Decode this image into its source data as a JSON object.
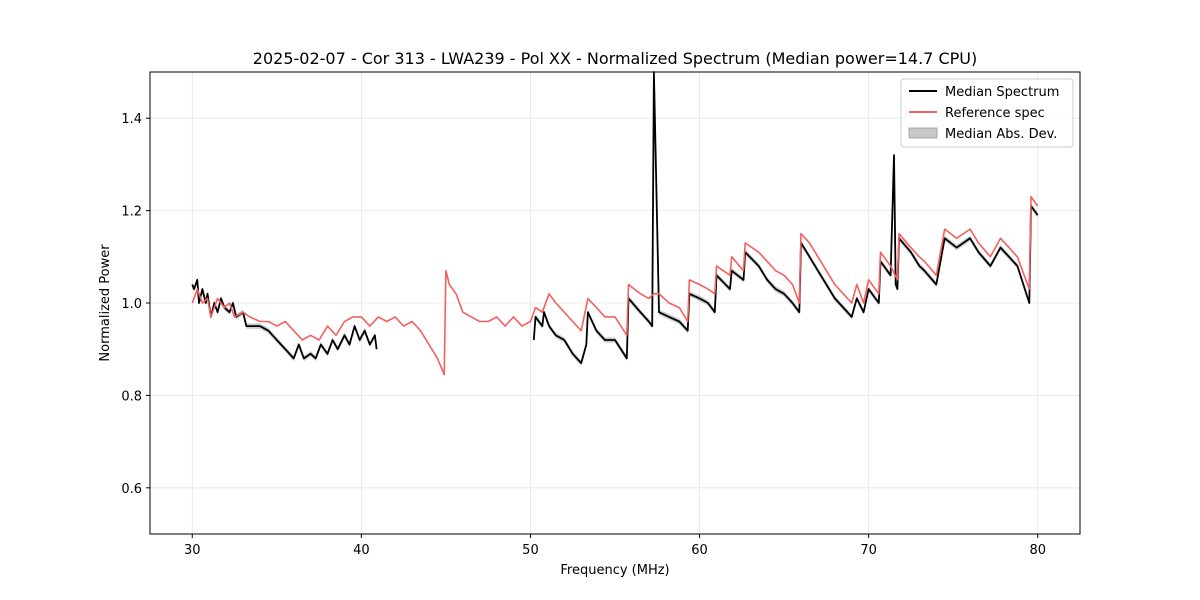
{
  "chart_data": {
    "type": "line",
    "title": "2025-02-07 - Cor 313 - LWA239 - Pol XX - Normalized Spectrum (Median power=14.7 CPU)",
    "xlabel": "Frequency (MHz)",
    "ylabel": "Normalized Power",
    "xlim": [
      27.5,
      82.5
    ],
    "ylim": [
      0.5,
      1.5
    ],
    "grid": true,
    "legend_position": "top-right",
    "x_ticks": [
      {
        "value": 30,
        "label": "30"
      },
      {
        "value": 40,
        "label": "40"
      },
      {
        "value": 50,
        "label": "50"
      },
      {
        "value": 60,
        "label": "60"
      },
      {
        "value": 70,
        "label": "70"
      },
      {
        "value": 80,
        "label": "80"
      }
    ],
    "y_ticks": [
      {
        "value": 0.6,
        "label": "0.6"
      },
      {
        "value": 0.8,
        "label": "0.8"
      },
      {
        "value": 1.0,
        "label": "1.0"
      },
      {
        "value": 1.2,
        "label": "1.2"
      },
      {
        "value": 1.4,
        "label": "1.4"
      }
    ],
    "legend": [
      {
        "label": "Median Spectrum",
        "kind": "line",
        "color": "#000000"
      },
      {
        "label": "Reference spec",
        "kind": "line",
        "color": "#f46060"
      },
      {
        "label": "Median Abs. Dev.",
        "kind": "patch",
        "color": "#c8c8c8"
      }
    ],
    "series": [
      {
        "name": "Reference spec",
        "color": "#f46060",
        "x": [
          30.0,
          30.3,
          30.6,
          30.9,
          31.1,
          31.5,
          31.9,
          32.2,
          32.5,
          33.0,
          33.4,
          34.0,
          34.5,
          35.0,
          35.5,
          36.0,
          36.5,
          37.0,
          37.5,
          38.0,
          38.5,
          39.0,
          39.5,
          40.0,
          40.5,
          41.0,
          41.5,
          42.0,
          42.5,
          43.0,
          43.5,
          44.0,
          44.5,
          44.9,
          45.0,
          45.2,
          45.6,
          46.0,
          46.5,
          47.0,
          47.5,
          48.0,
          48.5,
          49.0,
          49.5,
          50.0,
          50.3,
          50.7,
          51.1,
          51.5,
          52.0,
          52.5,
          53.0,
          53.4,
          53.9,
          54.4,
          55.0,
          55.7,
          55.8,
          56.5,
          57.0,
          57.3,
          57.6,
          58.2,
          58.8,
          59.3,
          59.4,
          60.0,
          60.5,
          60.9,
          61.0,
          61.8,
          61.9,
          62.6,
          62.7,
          63.5,
          64.0,
          64.5,
          65.0,
          65.5,
          65.9,
          66.0,
          66.5,
          67.0,
          67.5,
          68.0,
          68.5,
          69.0,
          69.3,
          69.7,
          70.0,
          70.6,
          70.7,
          71.3,
          71.7,
          71.8,
          72.5,
          73.0,
          73.3,
          74.0,
          74.5,
          75.2,
          76.0,
          76.5,
          77.2,
          77.8,
          78.3,
          78.8,
          79.5,
          79.6,
          80.0
        ],
        "values": [
          1.0,
          1.03,
          1.0,
          1.01,
          0.97,
          1.01,
          0.99,
          1.0,
          0.97,
          0.98,
          0.97,
          0.96,
          0.96,
          0.95,
          0.96,
          0.94,
          0.92,
          0.93,
          0.92,
          0.95,
          0.93,
          0.96,
          0.97,
          0.97,
          0.95,
          0.97,
          0.96,
          0.97,
          0.95,
          0.96,
          0.94,
          0.91,
          0.88,
          0.845,
          1.07,
          1.04,
          1.02,
          0.98,
          0.97,
          0.96,
          0.96,
          0.97,
          0.95,
          0.97,
          0.95,
          0.96,
          0.99,
          0.98,
          1.02,
          1.0,
          0.98,
          0.96,
          0.94,
          1.01,
          0.99,
          0.97,
          0.97,
          0.93,
          1.04,
          1.02,
          1.01,
          1.02,
          1.02,
          1.0,
          0.99,
          0.96,
          1.05,
          1.04,
          1.03,
          1.02,
          1.08,
          1.06,
          1.1,
          1.07,
          1.13,
          1.11,
          1.09,
          1.07,
          1.06,
          1.04,
          1.0,
          1.15,
          1.13,
          1.1,
          1.07,
          1.04,
          1.02,
          1.0,
          1.04,
          1.0,
          1.05,
          1.02,
          1.11,
          1.08,
          1.05,
          1.15,
          1.12,
          1.1,
          1.09,
          1.06,
          1.16,
          1.14,
          1.16,
          1.13,
          1.1,
          1.14,
          1.12,
          1.1,
          1.03,
          1.23,
          1.21
        ]
      },
      {
        "name": "Median Spectrum",
        "color": "#000000",
        "segments": [
          {
            "x": [
              30.0,
              30.1,
              30.3,
              30.4,
              30.6,
              30.8,
              30.9,
              31.1,
              31.3,
              31.5,
              31.7,
              31.9,
              32.2,
              32.4,
              32.6,
              33.0,
              33.2,
              33.6,
              34.0,
              34.5,
              35.0,
              35.5,
              36.0,
              36.3,
              36.6,
              37.0,
              37.3,
              37.6,
              38.0,
              38.3,
              38.6,
              39.0,
              39.3,
              39.6,
              39.9,
              40.2,
              40.5,
              40.8,
              40.9
            ],
            "values": [
              1.04,
              1.03,
              1.05,
              1.0,
              1.03,
              1.0,
              1.02,
              0.97,
              1.0,
              0.98,
              1.01,
              0.99,
              0.98,
              1.0,
              0.97,
              0.98,
              0.95,
              0.95,
              0.95,
              0.94,
              0.92,
              0.9,
              0.88,
              0.91,
              0.88,
              0.89,
              0.88,
              0.91,
              0.89,
              0.92,
              0.9,
              0.93,
              0.91,
              0.95,
              0.92,
              0.94,
              0.91,
              0.93,
              0.9
            ]
          },
          {
            "x": [
              50.2,
              50.3,
              50.7,
              50.8,
              51.1,
              51.5,
              52.0,
              52.5,
              53.0,
              53.3,
              53.4,
              53.9,
              54.4,
              55.0,
              55.7,
              55.8,
              56.5,
              57.0,
              57.2,
              57.3,
              57.6,
              58.2,
              58.8,
              59.3,
              59.4,
              60.0,
              60.5,
              60.9,
              61.0,
              61.8,
              61.9,
              62.6,
              62.7,
              63.5,
              64.0,
              64.5,
              65.0,
              65.5,
              65.9,
              66.0,
              66.5,
              67.0,
              67.5,
              68.0,
              68.5,
              69.0,
              69.3,
              69.7,
              70.0,
              70.6,
              70.7,
              71.3,
              71.5,
              71.6,
              71.7,
              71.8,
              72.5,
              73.0,
              73.3,
              74.0,
              74.5,
              75.2,
              76.0,
              76.5,
              77.2,
              77.8,
              78.3,
              78.8,
              79.5,
              79.6,
              80.0
            ],
            "values": [
              0.92,
              0.97,
              0.95,
              0.98,
              0.95,
              0.93,
              0.92,
              0.89,
              0.87,
              0.91,
              0.98,
              0.94,
              0.92,
              0.92,
              0.88,
              1.01,
              0.98,
              0.96,
              0.95,
              1.5,
              0.98,
              0.97,
              0.96,
              0.94,
              1.02,
              1.01,
              1.0,
              0.98,
              1.06,
              1.03,
              1.07,
              1.05,
              1.11,
              1.08,
              1.05,
              1.03,
              1.02,
              1.0,
              0.98,
              1.13,
              1.1,
              1.07,
              1.04,
              1.01,
              0.99,
              0.97,
              1.01,
              0.98,
              1.03,
              1.0,
              1.09,
              1.06,
              1.32,
              1.04,
              1.03,
              1.14,
              1.11,
              1.08,
              1.07,
              1.04,
              1.14,
              1.12,
              1.14,
              1.11,
              1.08,
              1.12,
              1.1,
              1.08,
              1.0,
              1.21,
              1.19
            ]
          }
        ]
      }
    ]
  }
}
